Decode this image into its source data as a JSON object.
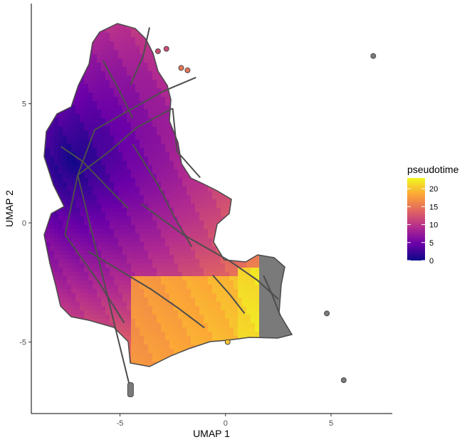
{
  "chart_data": {
    "type": "scatter",
    "xlabel": "UMAP 1",
    "ylabel": "UMAP 2",
    "xlim": [
      -9.2,
      7.9
    ],
    "ylim": [
      -8.0,
      9.2
    ],
    "x_ticks": [
      -5,
      0,
      5
    ],
    "y_ticks": [
      -5,
      0,
      5
    ],
    "x_tick_labels": [
      "-5",
      "0",
      "5"
    ],
    "y_tick_labels": [
      "-5",
      "0",
      "5"
    ],
    "grid": false,
    "color_legend": {
      "title": "pseudotime",
      "placement": "right",
      "range": [
        0,
        23
      ],
      "ticks": [
        0,
        5,
        10,
        15,
        20
      ],
      "tick_labels": [
        "0",
        "5",
        "10",
        "15",
        "20"
      ],
      "colormap": "plasma",
      "colors": [
        "#0d0887",
        "#6a00a8",
        "#b12a90",
        "#e16462",
        "#fca636",
        "#f0f921"
      ]
    },
    "na_color": "#7a7a7a",
    "outline_color": "#4a4a4a",
    "trajectory_color": "#4d4d4d",
    "outlier_points": [
      {
        "x": 7.0,
        "y": 7.0,
        "pseudotime": null
      },
      {
        "x": 4.8,
        "y": -3.8,
        "pseudotime": null
      },
      {
        "x": 5.6,
        "y": -6.6,
        "pseudotime": null
      },
      {
        "x": -2.1,
        "y": 6.5,
        "pseudotime": 15
      },
      {
        "x": -1.8,
        "y": 6.4,
        "pseudotime": 15
      },
      {
        "x": -3.2,
        "y": 7.2,
        "pseudotime": 12
      },
      {
        "x": -2.8,
        "y": 7.3,
        "pseudotime": 12
      },
      {
        "x": 0.1,
        "y": -5.0,
        "pseudotime": 20
      }
    ],
    "trajectory": [
      [
        [
          -4.5,
          -7.0
        ],
        [
          -7.0,
          2.0
        ],
        [
          -6.2,
          3.9
        ],
        [
          -3.0,
          5.5
        ],
        [
          -1.4,
          6.1
        ]
      ],
      [
        [
          -7.0,
          2.0
        ],
        [
          -5.5,
          3.0
        ],
        [
          -4.2,
          4.0
        ],
        [
          -2.5,
          4.8
        ]
      ],
      [
        [
          -2.5,
          4.8
        ],
        [
          -2.3,
          3.0
        ],
        [
          -1.2,
          1.9
        ]
      ],
      [
        [
          -7.0,
          2.0
        ],
        [
          -7.6,
          -0.5
        ],
        [
          -6.0,
          -2.5
        ],
        [
          -4.8,
          -4.2
        ]
      ],
      [
        [
          -4.0,
          0.8
        ],
        [
          -2.0,
          -0.5
        ],
        [
          0.2,
          -1.6
        ],
        [
          1.5,
          -2.4
        ],
        [
          2.5,
          -3.2
        ]
      ],
      [
        [
          -6.5,
          -1.2
        ],
        [
          -5.0,
          -2.0
        ],
        [
          -3.5,
          -2.8
        ],
        [
          -2.2,
          -3.6
        ],
        [
          -1.0,
          -4.4
        ]
      ],
      [
        [
          -4.4,
          3.3
        ],
        [
          -3.2,
          1.6
        ],
        [
          -2.4,
          0.2
        ],
        [
          -1.6,
          -1.0
        ]
      ],
      [
        [
          -5.8,
          6.8
        ],
        [
          -5.0,
          5.5
        ],
        [
          -4.4,
          4.4
        ]
      ],
      [
        [
          -3.6,
          8.2
        ],
        [
          -3.9,
          7.0
        ],
        [
          -4.5,
          5.8
        ]
      ],
      [
        [
          -7.8,
          3.2
        ],
        [
          -6.8,
          2.6
        ],
        [
          -5.6,
          1.5
        ],
        [
          -4.6,
          0.6
        ]
      ],
      [
        [
          -0.6,
          -2.2
        ],
        [
          0.2,
          -3.0
        ],
        [
          0.9,
          -3.8
        ]
      ],
      [
        [
          1.8,
          -2.2
        ],
        [
          2.2,
          -3.0
        ],
        [
          2.6,
          -3.9
        ]
      ]
    ]
  }
}
